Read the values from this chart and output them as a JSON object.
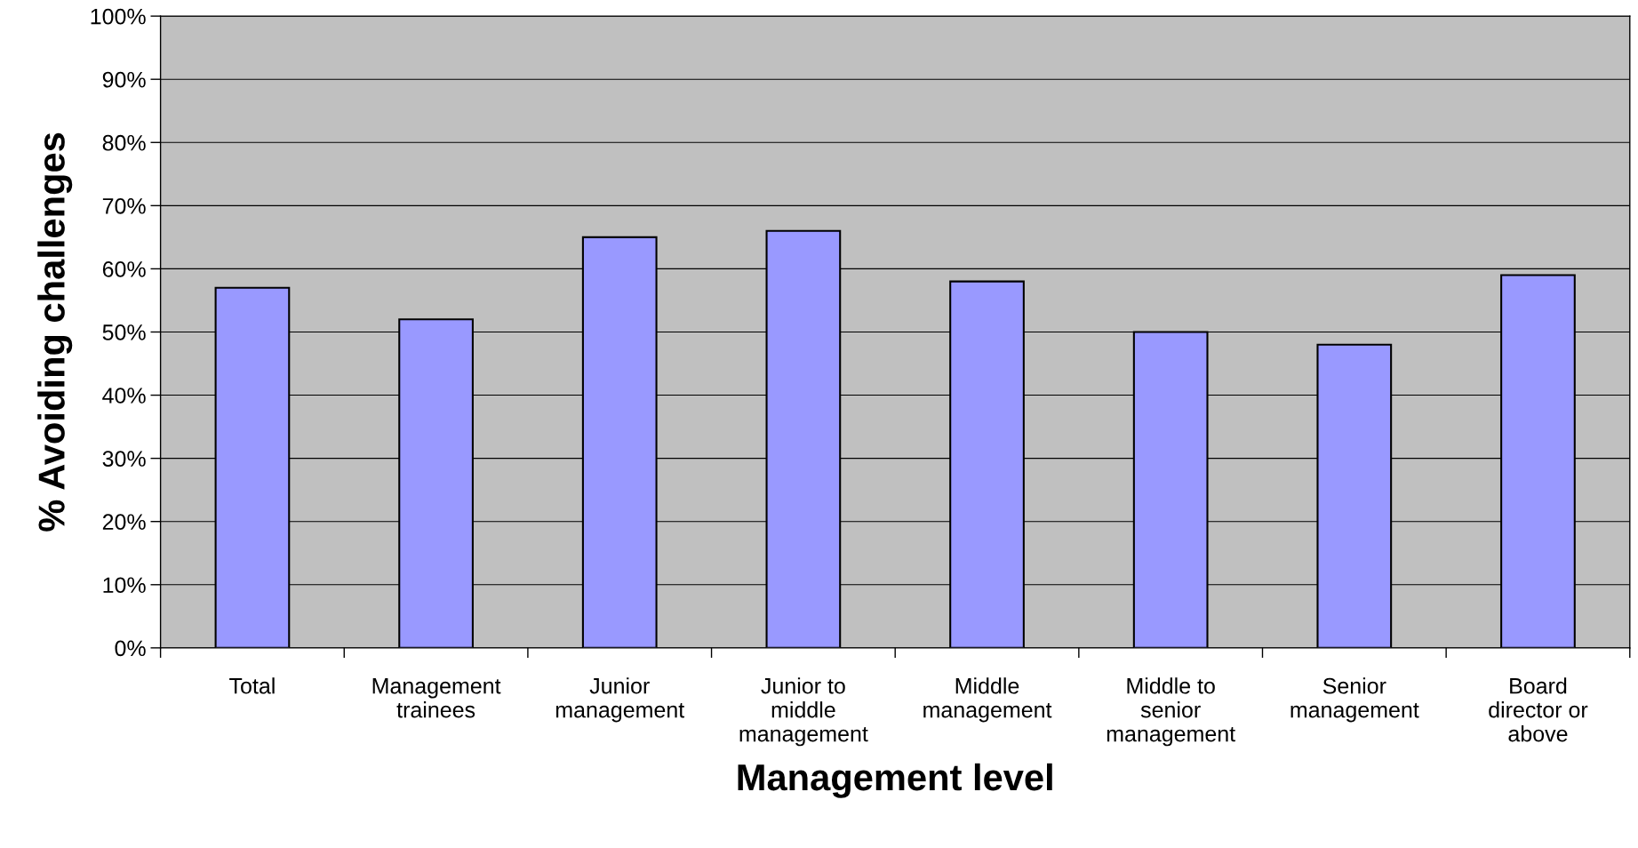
{
  "chart_data": {
    "type": "bar",
    "xlabel": "Management level",
    "ylabel": "% Avoiding challenges",
    "categories": [
      "Total",
      "Management\ntrainees",
      "Junior\nmanagement",
      "Junior to\nmiddle\nmanagement",
      "Middle\nmanagement",
      "Middle to\nsenior\nmanagement",
      "Senior\nmanagement",
      "Board\ndirector or\nabove"
    ],
    "values": [
      57,
      52,
      65,
      66,
      58,
      50,
      48,
      59
    ],
    "color": "#9999ff",
    "ylim": [
      0,
      100
    ],
    "yticks": [
      {
        "value": 0,
        "label": "0%"
      },
      {
        "value": 10,
        "label": "10%"
      },
      {
        "value": 20,
        "label": "20%"
      },
      {
        "value": 30,
        "label": "30%"
      },
      {
        "value": 40,
        "label": "40%"
      },
      {
        "value": 50,
        "label": "50%"
      },
      {
        "value": 60,
        "label": "60%"
      },
      {
        "value": 70,
        "label": "70%"
      },
      {
        "value": 80,
        "label": "80%"
      },
      {
        "value": 90,
        "label": "90%"
      },
      {
        "value": 100,
        "label": "100%"
      }
    ],
    "grid": "y"
  }
}
